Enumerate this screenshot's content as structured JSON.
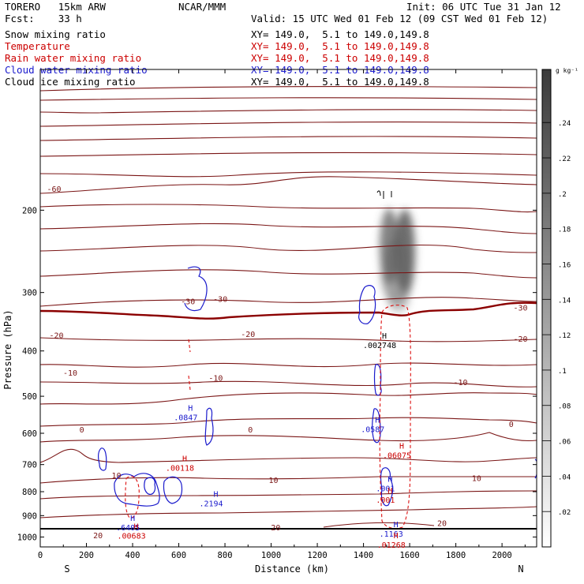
{
  "header": {
    "model": "TORERO   15km ARW",
    "center": "NCAR/MMM",
    "init": "Init: 06 UTC Tue 31 Jan 12",
    "fcst": "Fcst:    33 h",
    "valid": "Valid: 15 UTC Wed 01 Feb 12 (09 CST Wed 01 Feb 12)"
  },
  "legend": [
    {
      "label": "Snow mixing ratio",
      "xy": "XY= 149.0,  5.1 to 149.0,149.8",
      "color": "#000000"
    },
    {
      "label": "Temperature",
      "xy": "XY= 149.0,  5.1 to 149.0,149.8",
      "color": "#cc0000"
    },
    {
      "label": "Rain water mixing ratio",
      "xy": "XY= 149.0,  5.1 to 149.0,149.8",
      "color": "#cc0000"
    },
    {
      "label": "Cloud water mixing ratio",
      "xy": "XY= 149.0,  5.1 to 149.0,149.8",
      "color": "#1a1acc"
    },
    {
      "label": "Cloud ice mixing ratio",
      "xy": "XY= 149.0,  5.1 to 149.0,149.8",
      "color": "#000000"
    }
  ],
  "chart_data": {
    "type": "contour",
    "xlabel": "Distance (km)",
    "ylabel": "Pressure (hPa)",
    "x_ticks": [
      0,
      200,
      400,
      600,
      800,
      1000,
      1200,
      1400,
      1600,
      1800,
      2000
    ],
    "y_ticks": [
      200,
      300,
      400,
      500,
      600,
      700,
      800,
      900,
      1000
    ],
    "xlim": [
      0,
      2150
    ],
    "ylim": [
      1050,
      100
    ],
    "y_scale": "log",
    "x_end_labels": {
      "left": "S",
      "right": "N"
    },
    "colorbar": {
      "unit": "g kg⁻¹",
      "ticks": [
        ".02",
        ".04",
        ".06",
        ".08",
        ".1",
        ".12",
        ".14",
        ".16",
        ".18",
        ".2",
        ".22",
        ".24"
      ],
      "min": 0,
      "max": 0.27
    },
    "temperature_labels": [
      {
        "text": "-60",
        "x": 60,
        "p": 180
      },
      {
        "text": "-30",
        "x": 640,
        "p": 313
      },
      {
        "text": "-30",
        "x": 780,
        "p": 309
      },
      {
        "text": "-30",
        "x": 2080,
        "p": 323
      },
      {
        "text": "-20",
        "x": 70,
        "p": 370
      },
      {
        "text": "-20",
        "x": 900,
        "p": 368
      },
      {
        "text": "-20",
        "x": 2080,
        "p": 376
      },
      {
        "text": "-10",
        "x": 130,
        "p": 445
      },
      {
        "text": "-10",
        "x": 760,
        "p": 456
      },
      {
        "text": "-10",
        "x": 1820,
        "p": 466
      },
      {
        "text": "0",
        "x": 180,
        "p": 588
      },
      {
        "text": "0",
        "x": 910,
        "p": 588
      },
      {
        "text": "0",
        "x": 2040,
        "p": 573
      },
      {
        "text": "10",
        "x": 330,
        "p": 737
      },
      {
        "text": "10",
        "x": 1010,
        "p": 755
      },
      {
        "text": "10",
        "x": 1890,
        "p": 747
      },
      {
        "text": "20",
        "x": 250,
        "p": 990
      },
      {
        "text": "20",
        "x": 1020,
        "p": 952
      },
      {
        "text": "20",
        "x": 1740,
        "p": 932
      }
    ],
    "maxima": [
      {
        "label": "H",
        "value": ".002748",
        "x": 1470,
        "p": 385,
        "field": "snow"
      },
      {
        "label": "H",
        "value": ".0847",
        "x": 630,
        "p": 550,
        "field": "cloud_water"
      },
      {
        "label": "H",
        "value": ".0587",
        "x": 1440,
        "p": 583,
        "field": "cloud_water"
      },
      {
        "label": "H",
        "value": ".06075",
        "x": 1545,
        "p": 662,
        "field": "rain"
      },
      {
        "label": "H",
        "value": ".00118",
        "x": 605,
        "p": 705,
        "field": "rain"
      },
      {
        "label": "H",
        "value": ".001",
        "x": 1495,
        "p": 780,
        "field": "cloud_water"
      },
      {
        "label": "H",
        "value": ".001",
        "x": 1495,
        "p": 825,
        "field": "rain"
      },
      {
        "label": "H",
        "value": ".2194",
        "x": 740,
        "p": 840,
        "field": "cloud_water"
      },
      {
        "label": "H",
        "value": ".6405",
        "x": 380,
        "p": 945,
        "field": "cloud_water"
      },
      {
        "label": "H",
        "value": ".00683",
        "x": 395,
        "p": 985,
        "field": "rain"
      },
      {
        "label": "H",
        "value": ".1163",
        "x": 1520,
        "p": 975,
        "field": "cloud_water"
      },
      {
        "label": "H",
        "value": ".01268",
        "x": 1520,
        "p": 1030,
        "field": "rain"
      }
    ]
  }
}
